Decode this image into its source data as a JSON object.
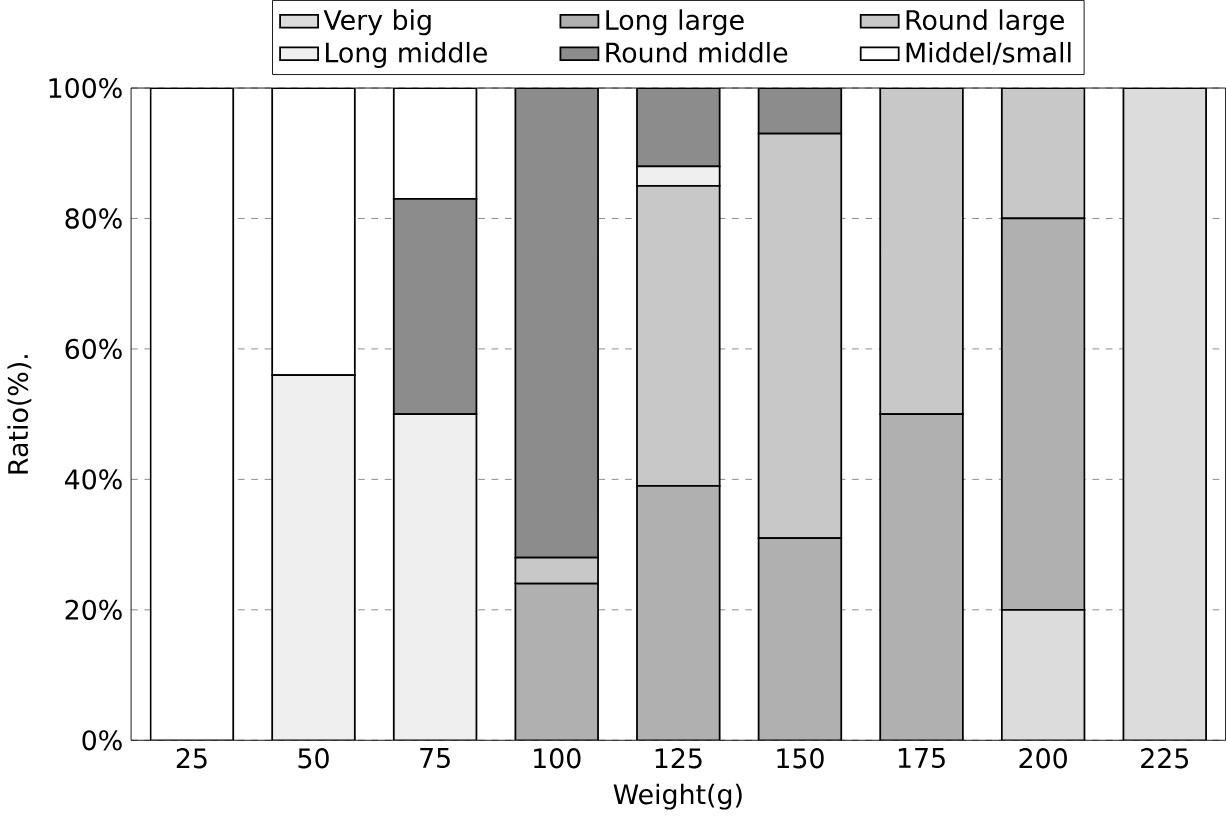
{
  "chart_data": {
    "type": "bar",
    "stacked": true,
    "xlabel": "Weight(g)",
    "ylabel": "Ratio(%).",
    "categories": [
      "25",
      "50",
      "75",
      "100",
      "125",
      "150",
      "175",
      "200",
      "225"
    ],
    "series": [
      {
        "name": "Very big",
        "color": "#dcdcdc",
        "values": [
          0,
          0,
          0,
          0,
          0,
          0,
          0,
          20,
          100
        ]
      },
      {
        "name": "Long large",
        "color": "#b0b0b0",
        "values": [
          0,
          0,
          0,
          24,
          39,
          31,
          50,
          60,
          0
        ]
      },
      {
        "name": "Round large",
        "color": "#c8c8c8",
        "values": [
          0,
          0,
          0,
          4,
          46,
          62,
          50,
          20,
          0
        ]
      },
      {
        "name": "Long middle",
        "color": "#efefef",
        "values": [
          0,
          56,
          50,
          0,
          3,
          0,
          0,
          0,
          0
        ]
      },
      {
        "name": "Round middle",
        "color": "#8c8c8c",
        "values": [
          0,
          0,
          33,
          72,
          12,
          7,
          0,
          0,
          0
        ]
      },
      {
        "name": "Middel/small",
        "color": "#ffffff",
        "values": [
          100,
          44,
          17,
          0,
          0,
          0,
          0,
          0,
          0
        ]
      }
    ],
    "ylim": [
      0,
      100
    ],
    "yticks": [
      {
        "value": 0,
        "label": "0%"
      },
      {
        "value": 20,
        "label": "20%"
      },
      {
        "value": 40,
        "label": "40%"
      },
      {
        "value": 60,
        "label": "60%"
      },
      {
        "value": 80,
        "label": "80%"
      },
      {
        "value": 100,
        "label": "100%"
      }
    ],
    "grid": "y",
    "legend": "top"
  }
}
